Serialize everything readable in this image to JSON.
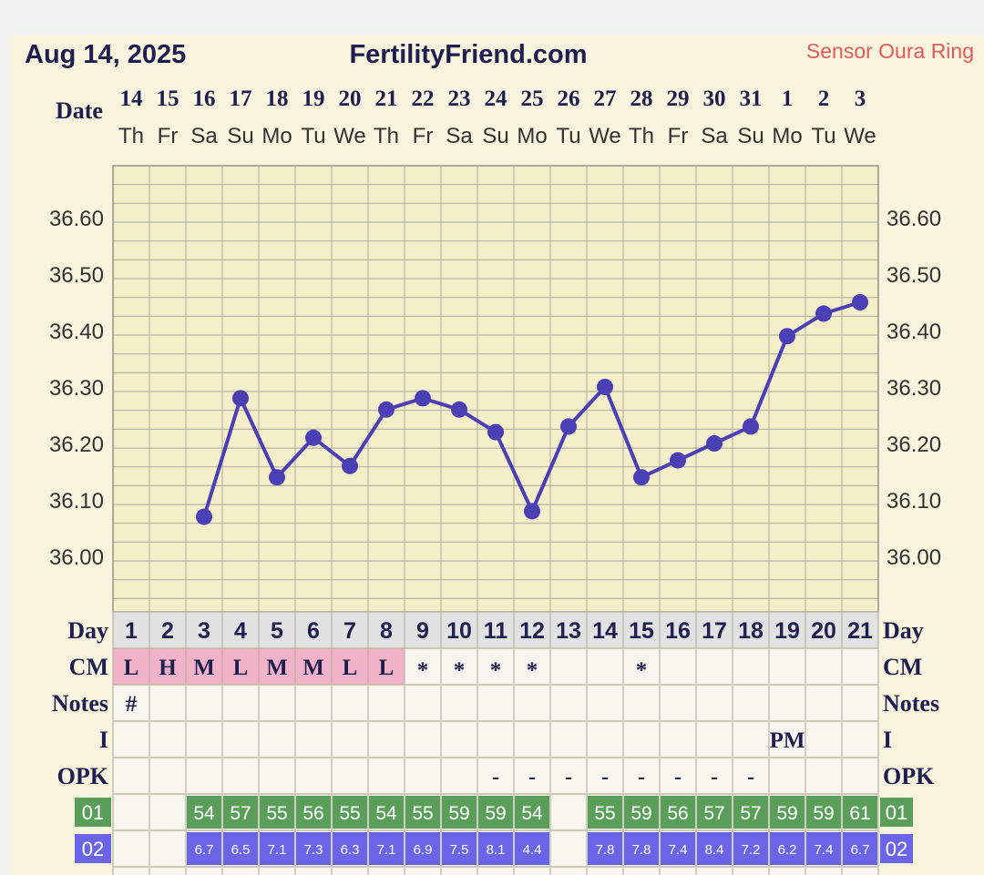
{
  "header": {
    "date": "Aug 14, 2025",
    "site": "FertilityFriend.com",
    "sensor": "Sensor Oura Ring"
  },
  "labels": {
    "date": "Date",
    "day": "Day",
    "cm": "CM",
    "notes": "Notes",
    "intercourse": "I",
    "opk": "OPK",
    "row01": "01",
    "row02": "02"
  },
  "colors": {
    "line": "#4b3fb5",
    "cm_fill": "#f2b3c9",
    "row01_fill": "#5a9e5a",
    "row02_fill": "#6a64e6",
    "day_row_fill": "#e2e2e2",
    "accent_text": "#e05a5a"
  },
  "chart_data": {
    "type": "line",
    "y_ticks": [
      "36.60",
      "36.50",
      "36.40",
      "36.30",
      "36.20",
      "36.10",
      "36.00"
    ],
    "ylim": [
      35.9,
      36.7
    ],
    "dates": [
      "14",
      "15",
      "16",
      "17",
      "18",
      "19",
      "20",
      "21",
      "22",
      "23",
      "24",
      "25",
      "26",
      "27",
      "28",
      "29",
      "30",
      "31",
      "1",
      "2",
      "3"
    ],
    "weekdays": [
      "Th",
      "Fr",
      "Sa",
      "Su",
      "Mo",
      "Tu",
      "We",
      "Th",
      "Fr",
      "Sa",
      "Su",
      "Mo",
      "Tu",
      "We",
      "Th",
      "Fr",
      "Sa",
      "Su",
      "Mo",
      "Tu",
      "We"
    ],
    "cycle_days": [
      "1",
      "2",
      "3",
      "4",
      "5",
      "6",
      "7",
      "8",
      "9",
      "10",
      "11",
      "12",
      "13",
      "14",
      "15",
      "16",
      "17",
      "18",
      "19",
      "20",
      "21"
    ],
    "temperatures": [
      null,
      null,
      36.07,
      36.28,
      36.14,
      36.21,
      36.16,
      36.26,
      36.28,
      36.26,
      36.22,
      36.08,
      36.23,
      36.3,
      36.14,
      36.17,
      36.2,
      36.23,
      36.39,
      36.43,
      36.45
    ],
    "cm": [
      "L",
      "H",
      "M",
      "L",
      "M",
      "M",
      "L",
      "L",
      "*",
      "*",
      "*",
      "*",
      "",
      "",
      "*",
      "",
      "",
      "",
      "",
      "",
      ""
    ],
    "notes": [
      "#",
      "",
      "",
      "",
      "",
      "",
      "",
      "",
      "",
      "",
      "",
      "",
      "",
      "",
      "",
      "",
      "",
      "",
      "",
      "",
      ""
    ],
    "intercourse": [
      "",
      "",
      "",
      "",
      "",
      "",
      "",
      "",
      "",
      "",
      "",
      "",
      "",
      "",
      "",
      "",
      "",
      "",
      "PM",
      "",
      ""
    ],
    "opk": [
      "",
      "",
      "",
      "",
      "",
      "",
      "",
      "",
      "",
      "",
      "-",
      "-",
      "-",
      "-",
      "-",
      "-",
      "-",
      "-",
      "",
      "",
      ""
    ],
    "row01": [
      "",
      "",
      "54",
      "57",
      "55",
      "56",
      "55",
      "54",
      "55",
      "59",
      "59",
      "54",
      "",
      "55",
      "59",
      "56",
      "57",
      "57",
      "59",
      "59",
      "61"
    ],
    "row02": [
      "",
      "",
      "6.7",
      "6.5",
      "7.1",
      "7.3",
      "6.3",
      "7.1",
      "6.9",
      "7.5",
      "8.1",
      "4.4",
      "",
      "7.8",
      "7.8",
      "7.4",
      "8.4",
      "7.2",
      "6.2",
      "7.4",
      "6.7"
    ]
  }
}
